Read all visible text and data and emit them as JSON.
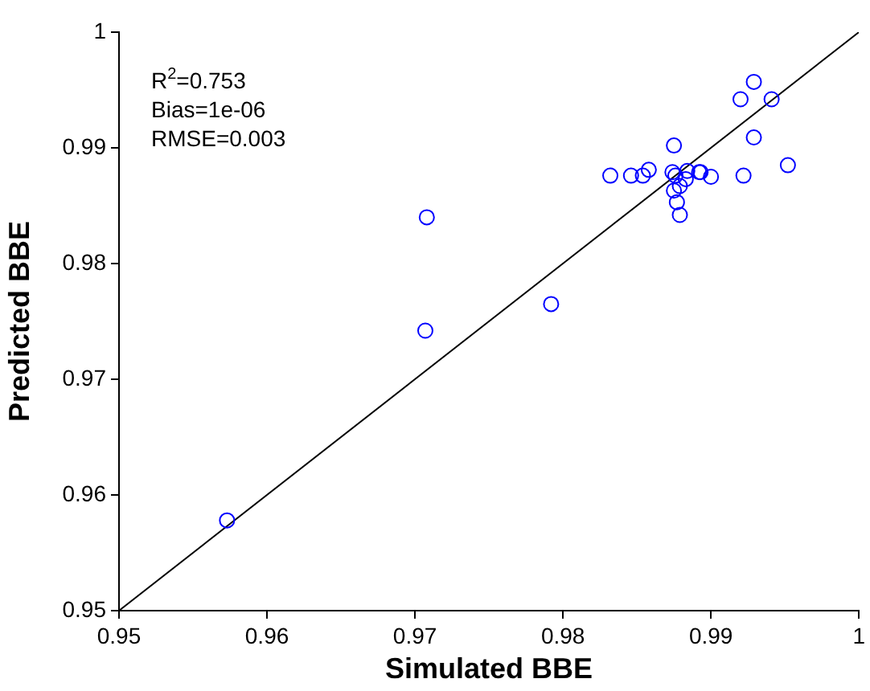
{
  "chart_data": {
    "type": "scatter",
    "xlabel": "Simulated BBE",
    "ylabel": "Predicted BBE",
    "annotations": [
      "R$^{2}$=0.753",
      "Bias=1e-06",
      "RMSE=0.003"
    ],
    "xlim": [
      0.95,
      1
    ],
    "ylim": [
      0.95,
      1
    ],
    "xticks": [
      0.95,
      0.96,
      0.97,
      0.98,
      0.99,
      1
    ],
    "yticks": [
      0.95,
      0.96,
      0.97,
      0.98,
      0.99,
      1
    ],
    "grid": false,
    "legend": false,
    "marker": "circle",
    "series": [
      {
        "color": "#0000ff",
        "x": [
          0.9573,
          0.9707,
          0.9708,
          0.9792,
          0.9832,
          0.9846,
          0.9854,
          0.9858,
          0.9875,
          0.9874,
          0.9876,
          0.9884,
          0.9883,
          0.9879,
          0.9875,
          0.9877,
          0.9879,
          0.9892,
          0.9893,
          0.99,
          0.9922,
          0.992,
          0.9929,
          0.9941,
          0.9929,
          0.9952
        ],
        "values": [
          0.9578,
          0.9742,
          0.984,
          0.9765,
          0.9876,
          0.9876,
          0.9876,
          0.9881,
          0.9902,
          0.9879,
          0.9876,
          0.988,
          0.9873,
          0.9867,
          0.9863,
          0.9853,
          0.9842,
          0.9879,
          0.9879,
          0.9875,
          0.9876,
          0.9942,
          0.9957,
          0.9942,
          0.9909,
          0.9885
        ]
      },
      {
        "type": "line",
        "color": "#000000",
        "marker": "none",
        "x": [
          0.95,
          1
        ],
        "values": [
          0.95,
          1
        ]
      }
    ]
  }
}
